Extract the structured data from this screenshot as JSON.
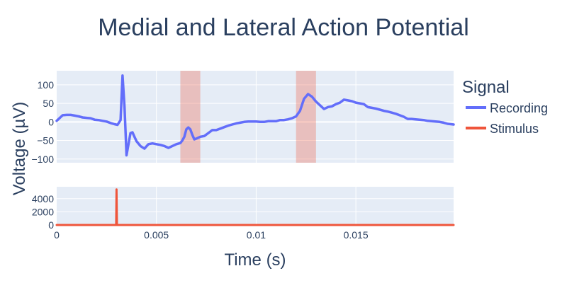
{
  "chart_data": {
    "type": "line",
    "title": "Medial and Lateral Action Potential",
    "xlabel": "Time (s)",
    "ylabel": "Voltage (µV)",
    "xlim": [
      0,
      0.0199
    ],
    "xticks": [
      0,
      0.005,
      0.01,
      0.015
    ],
    "xtick_labels": [
      "0",
      "0.005",
      "0.01",
      "0.015"
    ],
    "legend": {
      "title": "Signal",
      "placement": "right"
    },
    "grid": true,
    "colors": {
      "background": "#e5ecf6",
      "grid": "#ffffff",
      "text": "#2a3f5f",
      "recording": "#636efa",
      "stimulus": "#ef553b",
      "highlight": "#ef553b"
    },
    "highlight_bands": [
      {
        "x0": 0.0062,
        "x1": 0.0072
      },
      {
        "x0": 0.012,
        "x1": 0.013
      }
    ],
    "subplots": [
      {
        "name": "top",
        "ylim": [
          -110,
          138
        ],
        "yticks": [
          -100,
          -50,
          0,
          50,
          100
        ],
        "ytick_labels": [
          "−100",
          "−50",
          "0",
          "50",
          "100"
        ],
        "series": [
          {
            "name": "Recording",
            "x": [
              0,
              0.0001,
              0.0003,
              0.0005,
              0.0007,
              0.0009,
              0.0011,
              0.0013,
              0.0015,
              0.0017,
              0.0019,
              0.0021,
              0.0023,
              0.0025,
              0.0027,
              0.0029,
              0.00305,
              0.0032,
              0.0033,
              0.0034,
              0.0035,
              0.0036,
              0.0037,
              0.0038,
              0.0039,
              0.004,
              0.0042,
              0.0044,
              0.0046,
              0.0048,
              0.005,
              0.0052,
              0.0054,
              0.0056,
              0.0058,
              0.006,
              0.0062,
              0.0063,
              0.0064,
              0.0065,
              0.0066,
              0.0067,
              0.0068,
              0.0069,
              0.007,
              0.0072,
              0.0074,
              0.0076,
              0.0078,
              0.008,
              0.0082,
              0.0084,
              0.0086,
              0.0088,
              0.009,
              0.0092,
              0.0094,
              0.0096,
              0.0098,
              0.01,
              0.0102,
              0.0104,
              0.0106,
              0.0108,
              0.011,
              0.0112,
              0.0114,
              0.0116,
              0.0118,
              0.012,
              0.0122,
              0.0124,
              0.0126,
              0.0128,
              0.013,
              0.0132,
              0.0134,
              0.0136,
              0.0138,
              0.014,
              0.0142,
              0.0144,
              0.0146,
              0.0148,
              0.015,
              0.0152,
              0.0154,
              0.0156,
              0.0158,
              0.016,
              0.0162,
              0.0164,
              0.0166,
              0.0168,
              0.017,
              0.0172,
              0.0174,
              0.0176,
              0.0178,
              0.018,
              0.0182,
              0.0184,
              0.0186,
              0.0188,
              0.019,
              0.0192,
              0.0194,
              0.0196,
              0.0199
            ],
            "y": [
              3,
              8,
              18,
              19,
              19,
              17,
              15,
              12,
              11,
              10,
              6,
              5,
              3,
              1,
              -3,
              -6,
              -8,
              5,
              125,
              40,
              -90,
              -60,
              -30,
              -28,
              -40,
              -52,
              -65,
              -72,
              -60,
              -58,
              -60,
              -62,
              -65,
              -70,
              -65,
              -60,
              -57,
              -50,
              -40,
              -20,
              -15,
              -20,
              -35,
              -47,
              -45,
              -40,
              -38,
              -30,
              -22,
              -22,
              -18,
              -14,
              -10,
              -7,
              -4,
              -2,
              0,
              1,
              1,
              1,
              0,
              0,
              2,
              2,
              2,
              5,
              5,
              7,
              10,
              15,
              30,
              62,
              75,
              68,
              55,
              45,
              35,
              40,
              42,
              48,
              52,
              60,
              58,
              56,
              52,
              50,
              48,
              40,
              38,
              36,
              33,
              30,
              28,
              25,
              22,
              18,
              14,
              8,
              8,
              7,
              6,
              5,
              3,
              2,
              1,
              0,
              -2,
              -5,
              -7
            ]
          }
        ]
      },
      {
        "name": "bottom",
        "ylim": [
          0,
          5800
        ],
        "yticks": [
          0,
          2000,
          4000
        ],
        "ytick_labels": [
          "0",
          "2000",
          "4000"
        ],
        "series": [
          {
            "name": "Stimulus",
            "x": [
              0,
              0.00298,
              0.003,
              0.00302,
              0.0199
            ],
            "y": [
              0,
              0,
              5400,
              0,
              0
            ]
          }
        ]
      }
    ]
  }
}
